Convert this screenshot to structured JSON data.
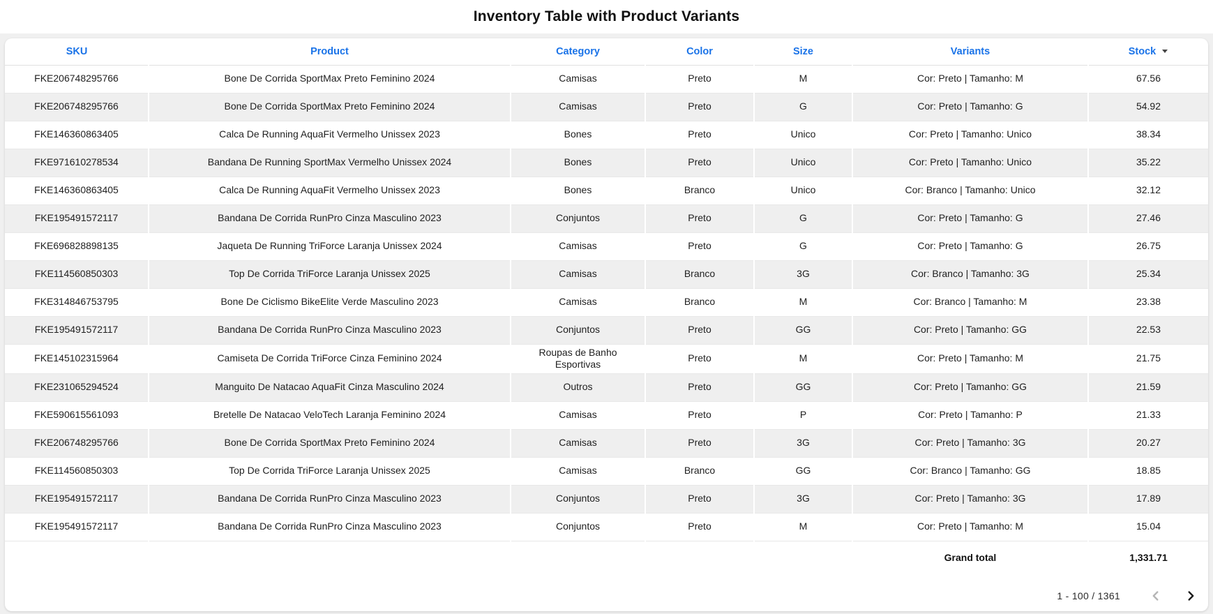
{
  "page": {
    "title": "Inventory Table with Product Variants"
  },
  "colors": {
    "header_accent": "#1a73e8",
    "row_alternate": "#efefef",
    "page_background": "#f0f0f0",
    "card_background": "#ffffff",
    "row_border": "#e8e8e8"
  },
  "table": {
    "columns": [
      {
        "key": "sku",
        "label": "SKU"
      },
      {
        "key": "product",
        "label": "Product"
      },
      {
        "key": "category",
        "label": "Category"
      },
      {
        "key": "color",
        "label": "Color"
      },
      {
        "key": "size",
        "label": "Size"
      },
      {
        "key": "variants",
        "label": "Variants"
      },
      {
        "key": "stock",
        "label": "Stock",
        "sort": "desc"
      }
    ],
    "rows": [
      [
        "FKE206748295766",
        "Bone De Corrida SportMax Preto Feminino 2024",
        "Camisas",
        "Preto",
        "M",
        "Cor: Preto | Tamanho: M",
        "67.56"
      ],
      [
        "FKE206748295766",
        "Bone De Corrida SportMax Preto Feminino 2024",
        "Camisas",
        "Preto",
        "G",
        "Cor: Preto | Tamanho: G",
        "54.92"
      ],
      [
        "FKE146360863405",
        "Calca De Running AquaFit Vermelho Unissex 2023",
        "Bones",
        "Preto",
        "Unico",
        "Cor: Preto | Tamanho: Unico",
        "38.34"
      ],
      [
        "FKE971610278534",
        "Bandana De Running SportMax Vermelho Unissex 2024",
        "Bones",
        "Preto",
        "Unico",
        "Cor: Preto | Tamanho: Unico",
        "35.22"
      ],
      [
        "FKE146360863405",
        "Calca De Running AquaFit Vermelho Unissex 2023",
        "Bones",
        "Branco",
        "Unico",
        "Cor: Branco | Tamanho: Unico",
        "32.12"
      ],
      [
        "FKE195491572117",
        "Bandana De Corrida RunPro Cinza Masculino 2023",
        "Conjuntos",
        "Preto",
        "G",
        "Cor: Preto | Tamanho: G",
        "27.46"
      ],
      [
        "FKE696828898135",
        "Jaqueta De Running TriForce Laranja Unissex 2024",
        "Camisas",
        "Preto",
        "G",
        "Cor: Preto | Tamanho: G",
        "26.75"
      ],
      [
        "FKE114560850303",
        "Top De Corrida TriForce Laranja Unissex 2025",
        "Camisas",
        "Branco",
        "3G",
        "Cor: Branco | Tamanho: 3G",
        "25.34"
      ],
      [
        "FKE314846753795",
        "Bone De Ciclismo BikeElite Verde Masculino 2023",
        "Camisas",
        "Branco",
        "M",
        "Cor: Branco | Tamanho: M",
        "23.38"
      ],
      [
        "FKE195491572117",
        "Bandana De Corrida RunPro Cinza Masculino 2023",
        "Conjuntos",
        "Preto",
        "GG",
        "Cor: Preto | Tamanho: GG",
        "22.53"
      ],
      [
        "FKE145102315964",
        "Camiseta De Corrida TriForce Cinza Feminino 2024",
        "Roupas de Banho Esportivas",
        "Preto",
        "M",
        "Cor: Preto | Tamanho: M",
        "21.75"
      ],
      [
        "FKE231065294524",
        "Manguito De Natacao AquaFit Cinza Masculino 2024",
        "Outros",
        "Preto",
        "GG",
        "Cor: Preto | Tamanho: GG",
        "21.59"
      ],
      [
        "FKE590615561093",
        "Bretelle De Natacao VeloTech Laranja Feminino 2024",
        "Camisas",
        "Preto",
        "P",
        "Cor: Preto | Tamanho: P",
        "21.33"
      ],
      [
        "FKE206748295766",
        "Bone De Corrida SportMax Preto Feminino 2024",
        "Camisas",
        "Preto",
        "3G",
        "Cor: Preto | Tamanho: 3G",
        "20.27"
      ],
      [
        "FKE114560850303",
        "Top De Corrida TriForce Laranja Unissex 2025",
        "Camisas",
        "Branco",
        "GG",
        "Cor: Branco | Tamanho: GG",
        "18.85"
      ],
      [
        "FKE195491572117",
        "Bandana De Corrida RunPro Cinza Masculino 2023",
        "Conjuntos",
        "Preto",
        "3G",
        "Cor: Preto | Tamanho: 3G",
        "17.89"
      ],
      [
        "FKE195491572117",
        "Bandana De Corrida RunPro Cinza Masculino 2023",
        "Conjuntos",
        "Preto",
        "M",
        "Cor: Preto | Tamanho: M",
        "15.04"
      ]
    ],
    "grand_total": {
      "label": "Grand total",
      "value": "1,331.71"
    }
  },
  "pagination": {
    "range": "1 - 100 / 1361",
    "prev_enabled": false,
    "next_enabled": true
  }
}
